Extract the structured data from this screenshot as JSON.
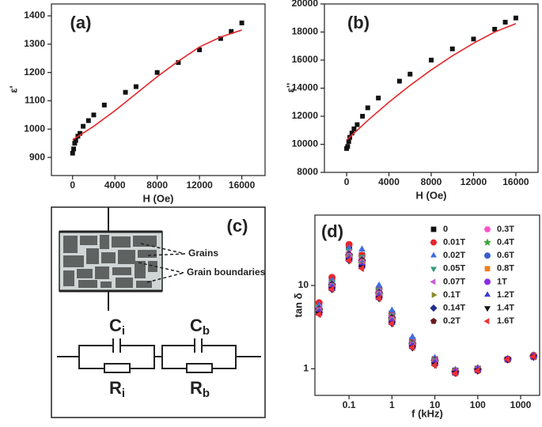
{
  "chart_data": [
    {
      "type": "scatter",
      "panel_label": "(a)",
      "x_label": "H (Oe)",
      "y_label": "ε'",
      "xlim": [
        -2000,
        18200
      ],
      "ylim": [
        836,
        1442
      ],
      "xticks": [
        0,
        4000,
        8000,
        12000,
        16000
      ],
      "yticks": [
        900,
        1000,
        1100,
        1200,
        1300,
        1400
      ],
      "series": [
        {
          "color": "#111111",
          "marker": "square",
          "x": [
            0,
            100,
            200,
            300,
            500,
            700,
            1000,
            1500,
            2000,
            3000,
            5000,
            6000,
            8000,
            10000,
            12000,
            14000,
            15000,
            16000
          ],
          "values": [
            915,
            930,
            950,
            960,
            975,
            985,
            1010,
            1030,
            1050,
            1085,
            1130,
            1150,
            1200,
            1235,
            1280,
            1320,
            1345,
            1375
          ]
        },
        {
          "color": "#e8262a",
          "line": true,
          "x": [
            0,
            2000,
            4000,
            6000,
            8000,
            10000,
            12000,
            14000,
            16000
          ],
          "values": [
            962,
            1010,
            1065,
            1125,
            1185,
            1240,
            1290,
            1325,
            1350
          ]
        }
      ]
    },
    {
      "type": "scatter",
      "panel_label": "(b)",
      "x_label": "H (Oe)",
      "y_label": "ε''",
      "xlim": [
        -2100,
        18100
      ],
      "ylim": [
        8000,
        20000
      ],
      "xticks": [
        0,
        4000,
        8000,
        12000,
        16000
      ],
      "yticks": [
        8000,
        10000,
        12000,
        14000,
        16000,
        18000,
        20000
      ],
      "series": [
        {
          "color": "#111111",
          "marker": "square",
          "x": [
            0,
            100,
            200,
            300,
            500,
            700,
            1000,
            1500,
            2000,
            3000,
            5000,
            6000,
            8000,
            10000,
            12000,
            14000,
            15000,
            16000
          ],
          "values": [
            9700,
            9850,
            10200,
            10500,
            10800,
            11100,
            11400,
            12000,
            12600,
            13300,
            14500,
            15000,
            16000,
            16800,
            17500,
            18200,
            18700,
            19000
          ]
        },
        {
          "color": "#e8262a",
          "line": true,
          "x": [
            0,
            2000,
            4000,
            6000,
            8000,
            10000,
            12000,
            14000,
            16000
          ],
          "values": [
            10300,
            11700,
            13000,
            14200,
            15300,
            16300,
            17200,
            18000,
            18600
          ]
        }
      ]
    },
    {
      "type": "scatter",
      "panel_label": "(d)",
      "x_label": "f (kHz)",
      "y_label": "tan δ",
      "xscale": "log",
      "yscale": "log",
      "legend": "upper right",
      "xlim": [
        0.016,
        2770
      ],
      "ylim": [
        0.48,
        70
      ],
      "xticks": [
        0.1,
        1,
        10,
        100,
        1000
      ],
      "yticks": [
        1,
        10
      ],
      "x": [
        0.02,
        0.04,
        0.1,
        0.2,
        0.5,
        1,
        3,
        10,
        30,
        100,
        500,
        2000
      ],
      "series": [
        {
          "name": "0",
          "color": "#111111",
          "marker": "square",
          "values": [
            6,
            12,
            30,
            23,
            9,
            4.6,
            2.2,
            1.3,
            0.95,
            1.0,
            1.3,
            1.4
          ]
        },
        {
          "name": "0.01T",
          "color": "#e8262a",
          "marker": "circle",
          "values": [
            6.2,
            12.5,
            31,
            23,
            9.2,
            4.6,
            2.2,
            1.3,
            0.95,
            1.0,
            1.3,
            1.45
          ]
        },
        {
          "name": "0.02T",
          "color": "#3d6fe0",
          "marker": "triangle-up",
          "values": [
            5.8,
            11.5,
            28,
            27,
            10,
            5,
            2.4,
            1.35,
            0.97,
            1.02,
            1.3,
            1.45
          ]
        },
        {
          "name": "0.05T",
          "color": "#2e9e7a",
          "marker": "triangle-down",
          "values": [
            5.5,
            11,
            26,
            22,
            8.8,
            4.4,
            2.1,
            1.28,
            0.94,
            1.0,
            1.3,
            1.4
          ]
        },
        {
          "name": "0.07T",
          "color": "#c85fd6",
          "marker": "triangle-left",
          "values": [
            5.4,
            10.8,
            25,
            21,
            8.6,
            4.3,
            2.1,
            1.27,
            0.93,
            1.0,
            1.3,
            1.4
          ]
        },
        {
          "name": "0.1T",
          "color": "#8a8a2a",
          "marker": "triangle-right",
          "values": [
            5.3,
            10.5,
            24,
            20.5,
            8.4,
            4.2,
            2.05,
            1.26,
            0.93,
            0.99,
            1.3,
            1.4
          ]
        },
        {
          "name": "0.14T",
          "color": "#1f2f8f",
          "marker": "diamond",
          "values": [
            5.2,
            10.3,
            23.5,
            20,
            8.2,
            4.1,
            2.0,
            1.25,
            0.92,
            0.99,
            1.3,
            1.4
          ]
        },
        {
          "name": "0.2T",
          "color": "#6b1a1a",
          "marker": "pentagon",
          "values": [
            5.1,
            10,
            23,
            19.5,
            8,
            4.0,
            2.0,
            1.24,
            0.92,
            0.98,
            1.3,
            1.4
          ]
        },
        {
          "name": "0.3T",
          "color": "#ff4fc8",
          "marker": "hexagon",
          "values": [
            5,
            9.8,
            22.5,
            19,
            7.9,
            3.9,
            1.95,
            1.22,
            0.91,
            0.98,
            1.3,
            1.4
          ]
        },
        {
          "name": "0.4T",
          "color": "#3aa43a",
          "marker": "star",
          "values": [
            4.9,
            9.6,
            22,
            18.5,
            7.7,
            3.8,
            1.92,
            1.2,
            0.91,
            0.97,
            1.3,
            1.4
          ]
        },
        {
          "name": "0.6T",
          "color": "#3a5fcd",
          "marker": "circle",
          "values": [
            4.8,
            9.5,
            21.5,
            18,
            7.5,
            3.7,
            1.9,
            1.18,
            0.9,
            0.97,
            1.3,
            1.4
          ]
        },
        {
          "name": "0.8T",
          "color": "#f08020",
          "marker": "square",
          "values": [
            4.7,
            9.3,
            21,
            17.5,
            7.3,
            3.65,
            1.87,
            1.16,
            0.9,
            0.96,
            1.3,
            1.4
          ]
        },
        {
          "name": "1T",
          "color": "#8a2be2",
          "marker": "circle",
          "values": [
            4.7,
            9.2,
            20.5,
            17,
            7.2,
            3.6,
            1.85,
            1.15,
            0.9,
            0.96,
            1.3,
            1.4
          ]
        },
        {
          "name": "1.2T",
          "color": "#3b3bcc",
          "marker": "triangle-up",
          "values": [
            4.6,
            9.1,
            20.5,
            17,
            7.1,
            3.55,
            1.83,
            1.14,
            0.89,
            0.96,
            1.3,
            1.4
          ]
        },
        {
          "name": "1.4T",
          "color": "#111111",
          "marker": "triangle-down",
          "values": [
            4.6,
            9,
            20,
            16.5,
            7,
            3.5,
            1.8,
            1.12,
            0.89,
            0.95,
            1.3,
            1.4
          ]
        },
        {
          "name": "1.6T",
          "color": "#f03030",
          "marker": "triangle-left",
          "values": [
            4.5,
            9,
            20,
            16,
            7,
            3.5,
            1.8,
            1.1,
            0.88,
            0.95,
            1.3,
            1.4
          ]
        }
      ]
    }
  ],
  "diagram": {
    "panel_label": "(c)",
    "annotations": [
      "Grains",
      "Grain boundaries"
    ],
    "elements": [
      {
        "symbol": "C",
        "subscript": "i"
      },
      {
        "symbol": "R",
        "subscript": "i"
      },
      {
        "symbol": "C",
        "subscript": "b"
      },
      {
        "symbol": "R",
        "subscript": "b"
      }
    ]
  }
}
